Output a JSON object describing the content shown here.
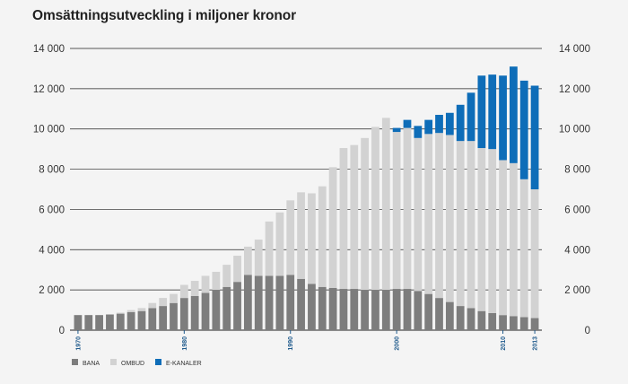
{
  "title": "Omsättningsutveckling i miljoner kronor",
  "colors": {
    "bana": "#7d7d7d",
    "ombud": "#d2d2d2",
    "ekanaler": "#0e6db8",
    "grid": "#222222",
    "year": "#1f5a8c"
  },
  "chart_data": {
    "type": "bar",
    "stacked": true,
    "title": "Omsättningsutveckling i miljoner kronor",
    "xlabel": "",
    "ylabel": "",
    "ylim": [
      0,
      14000
    ],
    "yticks": [
      "0",
      "2 000",
      "4 000",
      "6 000",
      "8 000",
      "10 000",
      "12 000",
      "14 000"
    ],
    "ytick_values": [
      0,
      2000,
      4000,
      6000,
      8000,
      10000,
      12000,
      14000
    ],
    "year_labels": [
      "1970",
      "1980",
      "1990",
      "2000",
      "2010",
      "2013"
    ],
    "year_label_values": [
      1970,
      1980,
      1990,
      2000,
      2010,
      2013
    ],
    "grid": true,
    "axis_labels_both_sides": true,
    "legend_position": "bottom-left",
    "categories": [
      1970,
      1971,
      1972,
      1973,
      1974,
      1975,
      1976,
      1977,
      1978,
      1979,
      1980,
      1981,
      1982,
      1983,
      1984,
      1985,
      1986,
      1987,
      1988,
      1989,
      1990,
      1991,
      1992,
      1993,
      1994,
      1995,
      1996,
      1997,
      1998,
      1999,
      2000,
      2001,
      2002,
      2003,
      2004,
      2005,
      2006,
      2007,
      2008,
      2009,
      2010,
      2011,
      2012,
      2013
    ],
    "series": [
      {
        "name": "BANA",
        "color": "#7d7d7d",
        "values": [
          750,
          750,
          750,
          780,
          820,
          900,
          950,
          1100,
          1200,
          1350,
          1600,
          1700,
          1850,
          2000,
          2150,
          2400,
          2750,
          2700,
          2700,
          2700,
          2750,
          2550,
          2300,
          2150,
          2100,
          2050,
          2050,
          2000,
          2000,
          2000,
          2050,
          2050,
          1950,
          1800,
          1600,
          1400,
          1200,
          1100,
          950,
          850,
          750,
          700,
          650,
          600
        ]
      },
      {
        "name": "OMBUD",
        "color": "#d2d2d2",
        "values": [
          0,
          0,
          0,
          0,
          50,
          100,
          150,
          250,
          400,
          450,
          650,
          750,
          850,
          900,
          1100,
          1300,
          1400,
          1800,
          2700,
          3150,
          3700,
          4300,
          4500,
          5000,
          6000,
          7000,
          7150,
          7550,
          8100,
          8550,
          7800,
          8000,
          7600,
          7950,
          8200,
          8300,
          8200,
          8300,
          8100,
          8150,
          7700,
          7600,
          6850,
          6400
        ]
      },
      {
        "name": "E-KANALER",
        "color": "#0e6db8",
        "values": [
          0,
          0,
          0,
          0,
          0,
          0,
          0,
          0,
          0,
          0,
          0,
          0,
          0,
          0,
          0,
          0,
          0,
          0,
          0,
          0,
          0,
          0,
          0,
          0,
          0,
          0,
          0,
          0,
          0,
          0,
          200,
          400,
          600,
          700,
          900,
          1100,
          1800,
          2400,
          3600,
          3700,
          4200,
          4800,
          4900,
          5150
        ]
      }
    ]
  },
  "legend": [
    {
      "label": "BANA",
      "color": "#7d7d7d"
    },
    {
      "label": "OMBUD",
      "color": "#d2d2d2"
    },
    {
      "label": "E-KANALER",
      "color": "#0e6db8"
    }
  ]
}
